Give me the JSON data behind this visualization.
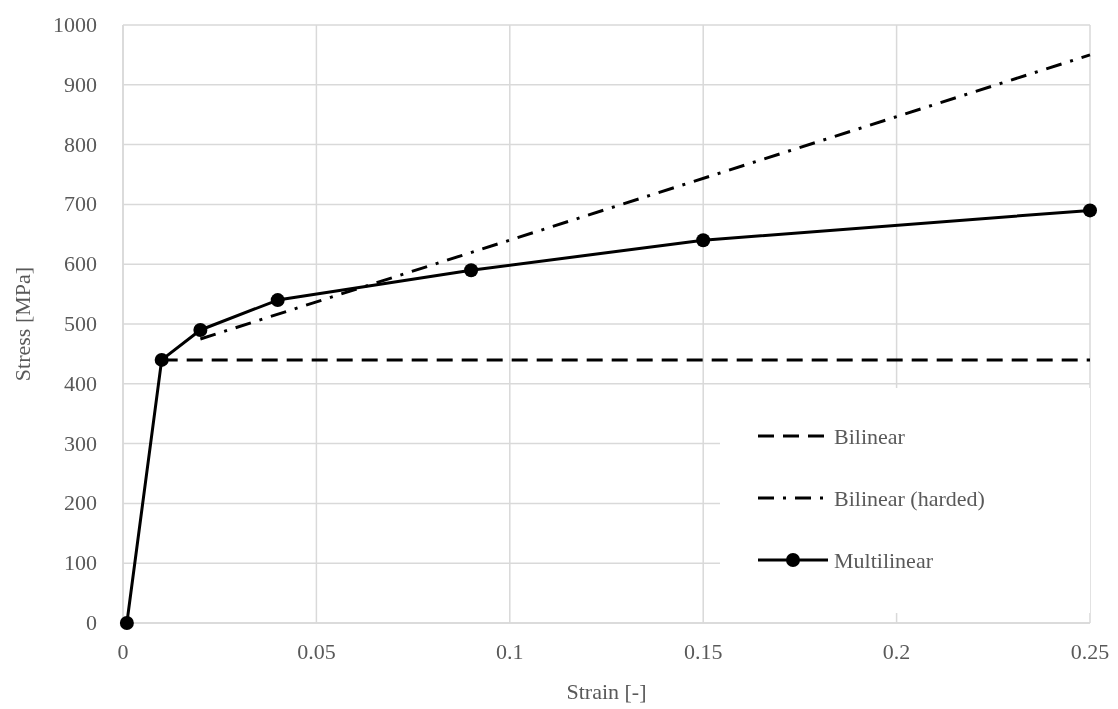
{
  "chart_data": {
    "type": "line",
    "xlabel": "Strain [-]",
    "ylabel": "Stress [MPa]",
    "xlim": [
      0,
      0.25
    ],
    "xticks": [
      0,
      0.05,
      0.1,
      0.15,
      0.2,
      0.25
    ],
    "ylim": [
      0,
      1000
    ],
    "yticks": [
      0,
      100,
      200,
      300,
      400,
      500,
      600,
      700,
      800,
      900,
      1000
    ],
    "grid": true,
    "legend": "bottom right",
    "series": [
      {
        "name": "Bilinear",
        "color": "#000000",
        "line_style": "dashed",
        "x": [
          0.01,
          0.25
        ],
        "values": [
          440,
          440
        ]
      },
      {
        "name": "Bilinear (harded)",
        "color": "#000000",
        "line_style": "dashdot",
        "x": [
          0.02,
          0.25
        ],
        "values": [
          475,
          950
        ]
      },
      {
        "name": "Multilinear",
        "color": "#000000",
        "line_style": "solid",
        "marker": "circle",
        "x": [
          0.001,
          0.01,
          0.02,
          0.04,
          0.09,
          0.15,
          0.25
        ],
        "values": [
          0,
          440,
          490,
          540,
          590,
          640,
          690
        ]
      }
    ]
  }
}
